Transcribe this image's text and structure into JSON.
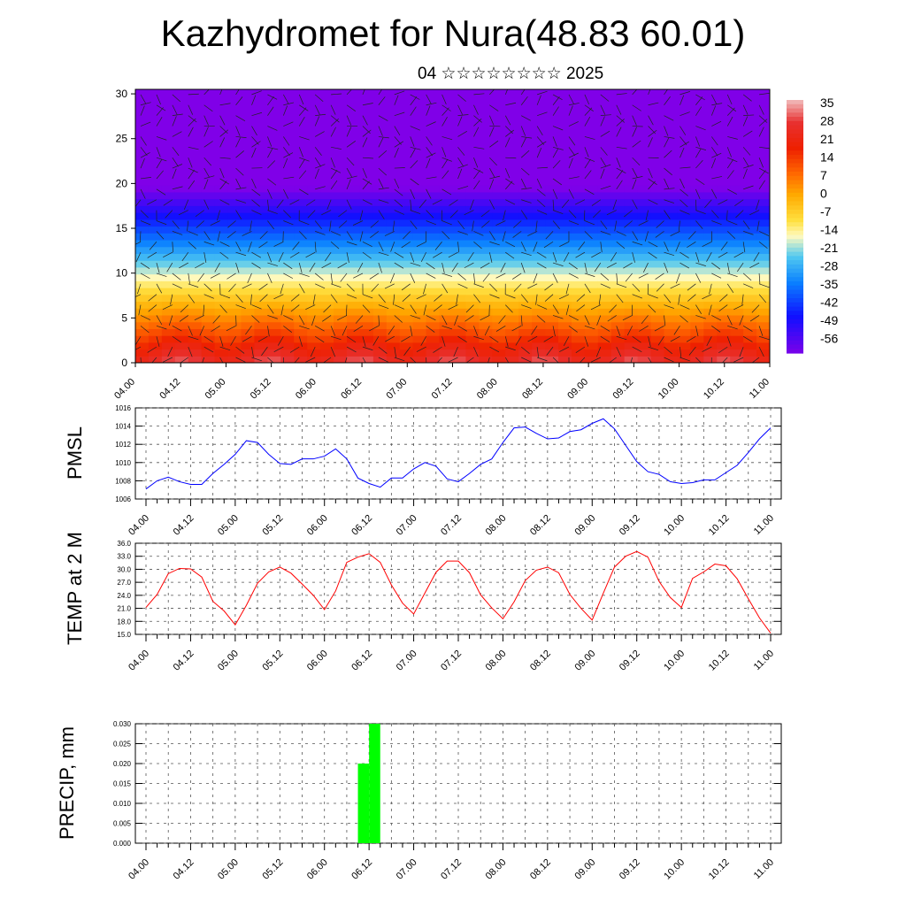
{
  "title": "Kazhydromet for Nura(48.83 60.01)",
  "subtitle": "04 ☆☆☆☆☆☆☆☆ 2025",
  "chart_data": [
    {
      "type": "heatmap",
      "description": "Temperature cross-section with wind vectors",
      "x_ticks": [
        "04.00",
        "04.12",
        "05.00",
        "05.12",
        "06.00",
        "06.12",
        "07.00",
        "07.12",
        "08.00",
        "08.12",
        "09.00",
        "09.12",
        "10.00",
        "10.12",
        "11.00"
      ],
      "y_ticks": [
        "0",
        "5",
        "10",
        "15",
        "20",
        "25",
        "30"
      ],
      "ylim": [
        0,
        30.5
      ],
      "colorbar_labels": [
        "35",
        "28",
        "21",
        "14",
        "7",
        "0",
        "-7",
        "-14",
        "-21",
        "-28",
        "-35",
        "-42",
        "-49",
        "-56"
      ],
      "colorscale": [
        {
          "v": 38,
          "color": "#f0b0b0"
        },
        {
          "v": 30,
          "color": "#e83030"
        },
        {
          "v": 20,
          "color": "#ee2000"
        },
        {
          "v": 10,
          "color": "#ff6a00"
        },
        {
          "v": 2,
          "color": "#ffaa00"
        },
        {
          "v": -8,
          "color": "#ffe040"
        },
        {
          "v": -14,
          "color": "#fffabf"
        },
        {
          "v": -22,
          "color": "#50c8f0"
        },
        {
          "v": -32,
          "color": "#0a80ff"
        },
        {
          "v": -45,
          "color": "#1010ff"
        },
        {
          "v": -60,
          "color": "#8000e8"
        }
      ]
    },
    {
      "type": "line",
      "ylabel": "PMSL",
      "color": "#0000ff",
      "ylim": [
        1006,
        1016
      ],
      "y_ticks": [
        "1006",
        "1008",
        "1010",
        "1012",
        "1014",
        "1016"
      ],
      "x_ticks": [
        "04.00",
        "04.12",
        "05.00",
        "05.12",
        "06.00",
        "06.12",
        "07.00",
        "07.12",
        "08.00",
        "08.12",
        "09.00",
        "09.12",
        "10.00",
        "10.12",
        "11.00"
      ],
      "values": [
        1007.1,
        1008.0,
        1008.4,
        1007.9,
        1007.6,
        1007.6,
        1008.8,
        1009.8,
        1010.9,
        1012.4,
        1012.2,
        1010.9,
        1009.9,
        1009.8,
        1010.4,
        1010.4,
        1010.7,
        1011.5,
        1010.4,
        1008.3,
        1007.7,
        1007.3,
        1008.3,
        1008.3,
        1009.3,
        1010.0,
        1009.6,
        1008.2,
        1007.9,
        1008.8,
        1009.8,
        1010.4,
        1012.2,
        1013.8,
        1013.9,
        1013.2,
        1012.6,
        1012.7,
        1013.4,
        1013.6,
        1014.3,
        1014.8,
        1013.7,
        1011.9,
        1010.1,
        1009.0,
        1008.7,
        1007.9,
        1007.7,
        1007.8,
        1008.1,
        1008.1,
        1008.9,
        1009.7,
        1011.1,
        1012.6,
        1013.8
      ]
    },
    {
      "type": "line",
      "ylabel": "TEMP at 2 M",
      "color": "#ff0000",
      "ylim": [
        15,
        36
      ],
      "y_ticks": [
        "15.0",
        "18.0",
        "21.0",
        "24.0",
        "27.0",
        "30.0",
        "33.0",
        "36.0"
      ],
      "x_ticks": [
        "04.00",
        "04.12",
        "05.00",
        "05.12",
        "06.00",
        "06.12",
        "07.00",
        "07.12",
        "08.00",
        "08.12",
        "09.00",
        "09.12",
        "10.00",
        "10.12",
        "11.00"
      ],
      "values": [
        21.2,
        24.2,
        29.0,
        30.2,
        30.1,
        28.2,
        22.6,
        20.4,
        17.2,
        21.7,
        26.8,
        29.4,
        30.5,
        29.1,
        26.6,
        24.0,
        20.7,
        25.0,
        31.6,
        32.8,
        33.6,
        31.6,
        26.4,
        22.2,
        19.7,
        24.5,
        29.3,
        31.9,
        31.9,
        29.2,
        24.1,
        21.1,
        18.6,
        22.5,
        27.4,
        29.8,
        30.5,
        29.2,
        24.2,
        21.0,
        18.3,
        24.5,
        30.5,
        33.0,
        34.1,
        32.8,
        27.2,
        23.5,
        21.2,
        27.9,
        29.4,
        31.2,
        30.8,
        27.8,
        23.2,
        18.8,
        15.3
      ]
    },
    {
      "type": "bar",
      "ylabel": "PRECIP, mm",
      "color": "#00ff00",
      "ylim": [
        0,
        0.03
      ],
      "y_ticks": [
        "0.000",
        "0.005",
        "0.010",
        "0.015",
        "0.020",
        "0.025",
        "0.030"
      ],
      "x_ticks": [
        "04.00",
        "04.12",
        "05.00",
        "05.12",
        "06.00",
        "06.12",
        "07.00",
        "07.12",
        "08.00",
        "08.12",
        "09.00",
        "09.12",
        "10.00",
        "10.12",
        "11.00"
      ],
      "bars": [
        {
          "x_index": 19.5,
          "value": 0.02
        },
        {
          "x_index": 20.5,
          "value": 0.03
        }
      ]
    }
  ]
}
